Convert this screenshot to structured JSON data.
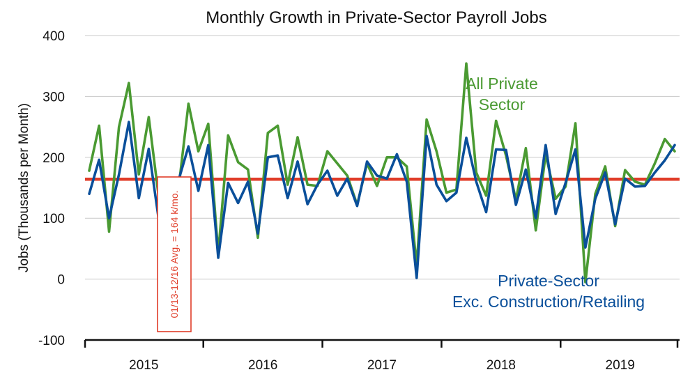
{
  "chart_data": {
    "type": "line",
    "title": "Monthly Growth in Private-Sector Payroll Jobs",
    "ylabel": "Jobs (Thousands per Month)",
    "xlabel": "",
    "ylim": [
      -100,
      400
    ],
    "yticks": [
      -100,
      0,
      100,
      200,
      300,
      400
    ],
    "x_start": "2015-01",
    "x_end": "2019-12",
    "year_labels": [
      "2015",
      "2016",
      "2017",
      "2018",
      "2019"
    ],
    "x": [
      "2015-01",
      "2015-02",
      "2015-03",
      "2015-04",
      "2015-05",
      "2015-06",
      "2015-07",
      "2015-08",
      "2015-09",
      "2015-10",
      "2015-11",
      "2015-12",
      "2016-01",
      "2016-02",
      "2016-03",
      "2016-04",
      "2016-05",
      "2016-06",
      "2016-07",
      "2016-08",
      "2016-09",
      "2016-10",
      "2016-11",
      "2016-12",
      "2017-01",
      "2017-02",
      "2017-03",
      "2017-04",
      "2017-05",
      "2017-06",
      "2017-07",
      "2017-08",
      "2017-09",
      "2017-10",
      "2017-11",
      "2017-12",
      "2018-01",
      "2018-02",
      "2018-03",
      "2018-04",
      "2018-05",
      "2018-06",
      "2018-07",
      "2018-08",
      "2018-09",
      "2018-10",
      "2018-11",
      "2018-12",
      "2019-01",
      "2019-02",
      "2019-03",
      "2019-04",
      "2019-05",
      "2019-06",
      "2019-07",
      "2019-08",
      "2019-09",
      "2019-10",
      "2019-11",
      "2019-12"
    ],
    "series": [
      {
        "name": "All Private Sector",
        "label_lines": [
          "All Private",
          "Sector"
        ],
        "color": "#4a9a32",
        "values": [
          178,
          252,
          78,
          250,
          322,
          172,
          266,
          135,
          150,
          148,
          288,
          210,
          255,
          42,
          236,
          192,
          180,
          68,
          240,
          252,
          155,
          233,
          155,
          153,
          210,
          190,
          170,
          122,
          190,
          153,
          200,
          200,
          185,
          22,
          262,
          210,
          142,
          147,
          354,
          175,
          137,
          260,
          203,
          130,
          215,
          80,
          205,
          132,
          152,
          256,
          -5,
          140,
          185,
          87,
          179,
          160,
          155,
          190,
          230,
          210
        ]
      },
      {
        "name": "Private-Sector Exc. Construction/Retailing",
        "label_lines": [
          "Private-Sector",
          "Exc. Construction/Retailing"
        ],
        "color": "#0a4f9a",
        "values": [
          140,
          196,
          100,
          172,
          258,
          133,
          214,
          98,
          160,
          162,
          218,
          145,
          220,
          35,
          158,
          125,
          160,
          75,
          200,
          203,
          133,
          193,
          123,
          155,
          178,
          137,
          165,
          120,
          193,
          170,
          165,
          205,
          160,
          2,
          235,
          155,
          128,
          142,
          232,
          160,
          110,
          213,
          212,
          122,
          180,
          100,
          220,
          107,
          158,
          213,
          52,
          132,
          175,
          90,
          165,
          152,
          153,
          175,
          195,
          220
        ]
      }
    ],
    "reference_line": {
      "value": 164,
      "color": "#e03c28",
      "label": "01/13-12/16 Avg. = 164 k/mo."
    },
    "grid": "horizontal",
    "legend": "inline labels"
  }
}
